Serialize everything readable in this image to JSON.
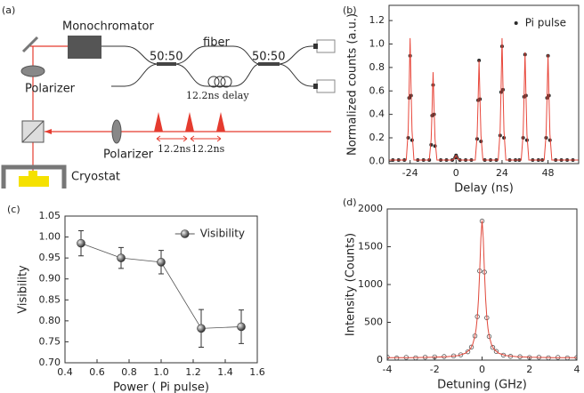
{
  "diagram": {
    "label": "(a)",
    "monochromator": "Monochromator",
    "fiber": "fiber",
    "couplers": [
      "50:50",
      "50:50"
    ],
    "delay": "12.2ns delay",
    "polarizers": [
      "Polarizer",
      "Polarizer"
    ],
    "pulse_spacings": [
      "12.2ns",
      "12.2ns"
    ],
    "cryostat": "Cryostat"
  },
  "chart_data": [
    {
      "type": "scatter",
      "label": "(b)",
      "xlabel": "Delay (ns)",
      "ylabel": "Normalized counts (a.u.)",
      "xlim": [
        -35,
        64
      ],
      "xticks": [
        -24,
        0,
        24,
        48
      ],
      "ylim": [
        -0.02,
        1.33
      ],
      "yticks": [
        {
          "value": 0,
          "label": "0.0"
        },
        0.2,
        0.4,
        0.6,
        0.8,
        {
          "value": 1,
          "label": "1.0"
        },
        1.2
      ],
      "legend": "upper right",
      "series": [
        {
          "name": "Pi pulse",
          "color": "#2b2b2b",
          "mode": "markers",
          "marker": "filled",
          "x": [
            -33,
            -30,
            -27,
            -25,
            -24.5,
            -24,
            -23.5,
            -23,
            -20,
            -17,
            -14,
            -13,
            -12.5,
            -12,
            -11.5,
            -11,
            -8,
            -5,
            -2,
            -0.5,
            0,
            0.5,
            2,
            5,
            8,
            11,
            11.5,
            12,
            12.5,
            13,
            15,
            18,
            21,
            23,
            23.5,
            24,
            24.5,
            25,
            28,
            31,
            33,
            35,
            35.5,
            36,
            36.5,
            37,
            40,
            43,
            45,
            47,
            47.5,
            48,
            48.5,
            49,
            52,
            55,
            58,
            61
          ],
          "values": [
            0.01,
            0.01,
            0.01,
            0.2,
            0.54,
            0.9,
            0.56,
            0.18,
            0.01,
            0.01,
            0.01,
            0.14,
            0.39,
            0.65,
            0.4,
            0.13,
            0.01,
            0.01,
            0.01,
            0.03,
            0.05,
            0.03,
            0.01,
            0.01,
            0.01,
            0.19,
            0.52,
            0.86,
            0.53,
            0.17,
            0.01,
            0.01,
            0.01,
            0.22,
            0.59,
            0.98,
            0.61,
            0.2,
            0.01,
            0.01,
            0.01,
            0.2,
            0.55,
            0.91,
            0.56,
            0.18,
            0.01,
            0.01,
            0.01,
            0.2,
            0.54,
            0.9,
            0.56,
            0.18,
            0.01,
            0.01,
            0.01,
            0.01
          ]
        },
        {
          "color": "#e8473b",
          "mode": "line",
          "x": [
            -35,
            -26,
            -25,
            -24.5,
            -24,
            -23.5,
            -23,
            -22,
            -14,
            -13,
            -12.5,
            -12,
            -11.5,
            -11,
            -10,
            -2,
            -1,
            0,
            1,
            2,
            10,
            11,
            11.5,
            12,
            12.5,
            13,
            14,
            22,
            23,
            23.5,
            24,
            24.5,
            25,
            26,
            34,
            35,
            35.5,
            36,
            36.5,
            37,
            38,
            46,
            47,
            47.5,
            48,
            48.5,
            49,
            50,
            64
          ],
          "values": [
            0.01,
            0.01,
            0.26,
            0.63,
            1.05,
            0.63,
            0.26,
            0.01,
            0.01,
            0.19,
            0.46,
            0.76,
            0.46,
            0.19,
            0.01,
            0.01,
            0.02,
            0.05,
            0.02,
            0.01,
            0.01,
            0.22,
            0.52,
            0.86,
            0.52,
            0.22,
            0.01,
            0.01,
            0.26,
            0.63,
            1.05,
            0.63,
            0.26,
            0.01,
            0.01,
            0.23,
            0.56,
            0.93,
            0.56,
            0.23,
            0.01,
            0.01,
            0.23,
            0.55,
            0.91,
            0.55,
            0.23,
            0.01,
            0.01
          ]
        }
      ]
    },
    {
      "type": "line",
      "label": "(c)",
      "xlabel": "Power ( Pi pulse)",
      "ylabel": "Visibility",
      "xlim": [
        0.4,
        1.6
      ],
      "xticks": [
        0.4,
        0.6,
        0.8,
        {
          "value": 1,
          "label": "1.0"
        },
        1.2,
        1.4,
        1.6
      ],
      "ylim": [
        0.7,
        1.05
      ],
      "yticks": [
        {
          "value": 0.7,
          "label": "0.70"
        },
        0.75,
        {
          "value": 0.8,
          "label": "0.80"
        },
        0.85,
        {
          "value": 0.9,
          "label": "0.90"
        },
        0.95,
        {
          "value": 1,
          "label": "1.00"
        },
        1.05
      ],
      "legend": "upper right",
      "series": [
        {
          "name": "Visibility",
          "color": "#555555",
          "mode": "line+markers",
          "marker": "sphere",
          "x": [
            0.5,
            0.75,
            1.0,
            1.25,
            1.5
          ],
          "values": [
            0.985,
            0.95,
            0.94,
            0.782,
            0.786
          ],
          "errors": [
            0.03,
            0.025,
            0.028,
            0.045,
            0.04
          ]
        }
      ]
    },
    {
      "type": "scatter",
      "label": "(d)",
      "xlabel": "Detuning (GHz)",
      "ylabel": "Intensity (Counts)",
      "xlim": [
        -4,
        4
      ],
      "xticks": [
        -4,
        -2,
        0,
        2,
        4
      ],
      "ylim": [
        0,
        2000
      ],
      "yticks": [
        0,
        500,
        1000,
        1500,
        2000
      ],
      "series": [
        {
          "color": "#555555",
          "mode": "markers",
          "marker": "open",
          "x": [
            -4,
            -3.6,
            -3.2,
            -2.8,
            -2.4,
            -2,
            -1.6,
            -1.2,
            -0.9,
            -0.6,
            -0.45,
            -0.3,
            -0.2,
            -0.1,
            0,
            0.1,
            0.2,
            0.3,
            0.45,
            0.6,
            0.9,
            1.2,
            1.6,
            2,
            2.4,
            2.8,
            3.2,
            3.6,
            4
          ],
          "values": [
            40,
            28,
            36,
            30,
            38,
            42,
            47,
            55,
            70,
            110,
            172,
            320,
            575,
            1180,
            1840,
            1165,
            560,
            312,
            168,
            115,
            66,
            50,
            44,
            35,
            38,
            30,
            36,
            29,
            35
          ]
        },
        {
          "color": "#e0473a",
          "mode": "line",
          "x": [
            -4,
            -3,
            -2,
            -1.5,
            -1,
            -0.7,
            -0.5,
            -0.4,
            -0.3,
            -0.25,
            -0.2,
            -0.15,
            -0.1,
            -0.05,
            0,
            0.05,
            0.1,
            0.15,
            0.2,
            0.25,
            0.3,
            0.4,
            0.5,
            0.7,
            1,
            1.5,
            2,
            3,
            4
          ],
          "values": [
            32,
            33,
            38,
            44,
            60,
            91,
            145,
            204,
            318,
            417,
            570,
            811,
            1174,
            1615,
            1850,
            1615,
            1174,
            811,
            570,
            417,
            318,
            204,
            145,
            91,
            60,
            44,
            38,
            33,
            32
          ]
        }
      ]
    }
  ]
}
